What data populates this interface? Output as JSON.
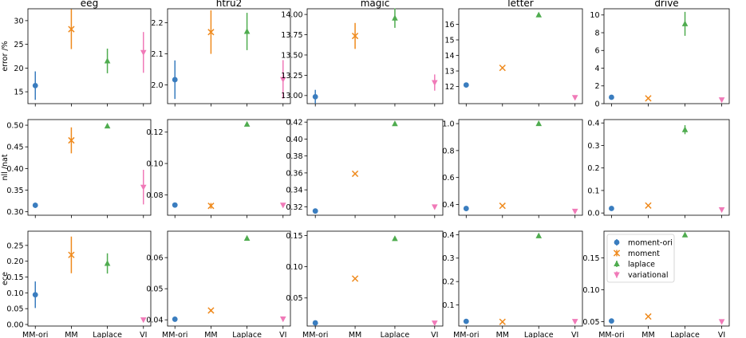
{
  "figure": {
    "row_labels": [
      "error /%",
      "nll /nat",
      "ece"
    ],
    "x_categories": [
      "MM-ori",
      "MM",
      "Laplace",
      "VI"
    ],
    "legend": [
      {
        "key": "moment-ori",
        "label": "moment-ori"
      },
      {
        "key": "moment",
        "label": "moment"
      },
      {
        "key": "laplace",
        "label": "laplace"
      },
      {
        "key": "variational",
        "label": "variational"
      }
    ]
  },
  "series_styles": {
    "moment-ori": {
      "color": "#3a7dbf",
      "marker": "circle"
    },
    "moment": {
      "color": "#ef8a1d",
      "marker": "x"
    },
    "laplace": {
      "color": "#4fac4f",
      "marker": "triangle-up"
    },
    "variational": {
      "color": "#f07ab8",
      "marker": "triangle-down"
    }
  },
  "chart_data": [
    {
      "type": "scatter",
      "title": "eeg",
      "ylabel": "error /%",
      "categories": [
        "MM-ori",
        "MM",
        "Laplace",
        "VI"
      ],
      "ylim": [
        12.5,
        32.5
      ],
      "yticks": [
        15,
        20,
        25,
        30
      ],
      "tick_labels": [
        "15",
        "20",
        "25",
        "30"
      ],
      "points": [
        {
          "series": "moment-ori",
          "x": "MM-ori",
          "y": 16.3,
          "err": 3.0
        },
        {
          "series": "moment",
          "x": "MM",
          "y": 28.2,
          "err": 4.2
        },
        {
          "series": "laplace",
          "x": "Laplace",
          "y": 21.5,
          "err": 2.6
        },
        {
          "series": "variational",
          "x": "VI",
          "y": 23.3,
          "err": 4.3
        }
      ]
    },
    {
      "type": "scatter",
      "title": "htru2",
      "ylabel": "",
      "categories": [
        "MM-ori",
        "MM",
        "Laplace",
        "VI"
      ],
      "ylim": [
        1.94,
        2.245
      ],
      "yticks": [
        2.0,
        2.1,
        2.2
      ],
      "tick_labels": [
        "2.0",
        "2.1",
        "2.2"
      ],
      "points": [
        {
          "series": "moment-ori",
          "x": "MM-ori",
          "y": 2.017,
          "err": 0.062
        },
        {
          "series": "moment",
          "x": "MM",
          "y": 2.17,
          "err": 0.07
        },
        {
          "series": "laplace",
          "x": "Laplace",
          "y": 2.172,
          "err": 0.06
        },
        {
          "series": "variational",
          "x": "VI",
          "y": 2.018,
          "err": 0.062
        }
      ]
    },
    {
      "type": "scatter",
      "title": "magic",
      "ylabel": "",
      "categories": [
        "MM-ori",
        "MM",
        "Laplace",
        "VI"
      ],
      "ylim": [
        12.9,
        14.07
      ],
      "yticks": [
        13.0,
        13.25,
        13.5,
        13.75,
        14.0
      ],
      "tick_labels": [
        "13.00",
        "13.25",
        "13.50",
        "13.75",
        "14.00"
      ],
      "points": [
        {
          "series": "moment-ori",
          "x": "MM-ori",
          "y": 12.985,
          "err": 0.085
        },
        {
          "series": "moment",
          "x": "MM",
          "y": 13.735,
          "err": 0.16
        },
        {
          "series": "laplace",
          "x": "Laplace",
          "y": 13.955,
          "err": 0.12
        },
        {
          "series": "variational",
          "x": "VI",
          "y": 13.16,
          "err": 0.1
        }
      ]
    },
    {
      "type": "scatter",
      "title": "letter",
      "ylabel": "",
      "categories": [
        "MM-ori",
        "MM",
        "Laplace",
        "VI"
      ],
      "ylim": [
        10.9,
        17.0
      ],
      "yticks": [
        12,
        13,
        14,
        15,
        16
      ],
      "tick_labels": [
        "12",
        "13",
        "14",
        "15",
        "16"
      ],
      "points": [
        {
          "series": "moment-ori",
          "x": "MM-ori",
          "y": 12.1,
          "err": 0.06
        },
        {
          "series": "moment",
          "x": "MM",
          "y": 13.2,
          "err": 0.06
        },
        {
          "series": "laplace",
          "x": "Laplace",
          "y": 16.6,
          "err": 0.06
        },
        {
          "series": "variational",
          "x": "VI",
          "y": 11.3,
          "err": 0.06
        }
      ]
    },
    {
      "type": "scatter",
      "title": "drive",
      "ylabel": "",
      "categories": [
        "MM-ori",
        "MM",
        "Laplace",
        "VI"
      ],
      "ylim": [
        0,
        10.7
      ],
      "yticks": [
        0,
        2,
        4,
        6,
        8,
        10
      ],
      "tick_labels": [
        "0",
        "2",
        "4",
        "6",
        "8",
        "10"
      ],
      "points": [
        {
          "series": "moment-ori",
          "x": "MM-ori",
          "y": 0.72,
          "err": 0.06
        },
        {
          "series": "moment",
          "x": "MM",
          "y": 0.6,
          "err": 0.06
        },
        {
          "series": "laplace",
          "x": "Laplace",
          "y": 9.0,
          "err": 1.35
        },
        {
          "series": "variational",
          "x": "VI",
          "y": 0.44,
          "err": 0.06
        }
      ]
    },
    {
      "type": "scatter",
      "title": "",
      "ylabel": "nll /nat",
      "categories": [
        "MM-ori",
        "MM",
        "Laplace",
        "VI"
      ],
      "ylim": [
        0.292,
        0.513
      ],
      "yticks": [
        0.3,
        0.35,
        0.4,
        0.45,
        0.5
      ],
      "tick_labels": [
        "0.30",
        "0.35",
        "0.40",
        "0.45",
        "0.50"
      ],
      "points": [
        {
          "series": "moment-ori",
          "x": "MM-ori",
          "y": 0.315,
          "err": 0.006
        },
        {
          "series": "moment",
          "x": "MM",
          "y": 0.465,
          "err": 0.03
        },
        {
          "series": "laplace",
          "x": "Laplace",
          "y": 0.498,
          "err": 0.003
        },
        {
          "series": "variational",
          "x": "VI",
          "y": 0.357,
          "err": 0.04
        }
      ]
    },
    {
      "type": "scatter",
      "title": "",
      "ylabel": "",
      "categories": [
        "MM-ori",
        "MM",
        "Laplace",
        "VI"
      ],
      "ylim": [
        0.067,
        0.128
      ],
      "yticks": [
        0.08,
        0.1,
        0.12
      ],
      "tick_labels": [
        "0.08",
        "0.10",
        "0.12"
      ],
      "points": [
        {
          "series": "moment-ori",
          "x": "MM-ori",
          "y": 0.0735,
          "err": 0.0005
        },
        {
          "series": "moment",
          "x": "MM",
          "y": 0.073,
          "err": 0.0018
        },
        {
          "series": "laplace",
          "x": "Laplace",
          "y": 0.125,
          "err": 0.0005
        },
        {
          "series": "variational",
          "x": "VI",
          "y": 0.0735,
          "err": 0.0008
        }
      ]
    },
    {
      "type": "scatter",
      "title": "",
      "ylabel": "",
      "categories": [
        "MM-ori",
        "MM",
        "Laplace",
        "VI"
      ],
      "ylim": [
        0.31,
        0.423
      ],
      "yticks": [
        0.32,
        0.34,
        0.36,
        0.38,
        0.4,
        0.42
      ],
      "tick_labels": [
        "0.32",
        "0.34",
        "0.36",
        "0.38",
        "0.40",
        "0.42"
      ],
      "points": [
        {
          "series": "moment-ori",
          "x": "MM-ori",
          "y": 0.315,
          "err": 0.0005
        },
        {
          "series": "moment",
          "x": "MM",
          "y": 0.359,
          "err": 0.0005
        },
        {
          "series": "laplace",
          "x": "Laplace",
          "y": 0.418,
          "err": 0.0005
        },
        {
          "series": "variational",
          "x": "VI",
          "y": 0.32,
          "err": 0.0005
        }
      ]
    },
    {
      "type": "scatter",
      "title": "",
      "ylabel": "",
      "categories": [
        "MM-ori",
        "MM",
        "Laplace",
        "VI"
      ],
      "ylim": [
        0.32,
        1.03
      ],
      "yticks": [
        0.4,
        0.6,
        0.8,
        1.0
      ],
      "tick_labels": [
        "0.4",
        "0.6",
        "0.8",
        "1.0"
      ],
      "points": [
        {
          "series": "moment-ori",
          "x": "MM-ori",
          "y": 0.37,
          "err": 0.005
        },
        {
          "series": "moment",
          "x": "MM",
          "y": 0.39,
          "err": 0.005
        },
        {
          "series": "laplace",
          "x": "Laplace",
          "y": 1.0,
          "err": 0.005
        },
        {
          "series": "variational",
          "x": "VI",
          "y": 0.35,
          "err": 0.005
        }
      ]
    },
    {
      "type": "scatter",
      "title": "",
      "ylabel": "",
      "categories": [
        "MM-ori",
        "MM",
        "Laplace",
        "VI"
      ],
      "ylim": [
        -0.01,
        0.415
      ],
      "yticks": [
        0.0,
        0.1,
        0.2,
        0.3,
        0.4
      ],
      "tick_labels": [
        "0.0",
        "0.1",
        "0.2",
        "0.3",
        "0.4"
      ],
      "points": [
        {
          "series": "moment-ori",
          "x": "MM-ori",
          "y": 0.02,
          "err": 0.002
        },
        {
          "series": "moment",
          "x": "MM",
          "y": 0.033,
          "err": 0.002
        },
        {
          "series": "laplace",
          "x": "Laplace",
          "y": 0.37,
          "err": 0.02
        },
        {
          "series": "variational",
          "x": "VI",
          "y": 0.015,
          "err": 0.002
        }
      ]
    },
    {
      "type": "scatter",
      "title": "",
      "ylabel": "ece",
      "categories": [
        "MM-ori",
        "MM",
        "Laplace",
        "VI"
      ],
      "ylim": [
        -0.005,
        0.295
      ],
      "yticks": [
        0.0,
        0.05,
        0.1,
        0.15,
        0.2,
        0.25
      ],
      "tick_labels": [
        "0.00",
        "0.05",
        "0.10",
        "0.15",
        "0.20",
        "0.25"
      ],
      "points": [
        {
          "series": "moment-ori",
          "x": "MM-ori",
          "y": 0.094,
          "err": 0.042
        },
        {
          "series": "moment",
          "x": "MM",
          "y": 0.22,
          "err": 0.058
        },
        {
          "series": "laplace",
          "x": "Laplace",
          "y": 0.193,
          "err": 0.032
        },
        {
          "series": "variational",
          "x": "VI",
          "y": 0.015,
          "err": 0.002
        }
      ]
    },
    {
      "type": "scatter",
      "title": "",
      "ylabel": "",
      "categories": [
        "MM-ori",
        "MM",
        "Laplace",
        "VI"
      ],
      "ylim": [
        0.038,
        0.0685
      ],
      "yticks": [
        0.04,
        0.05,
        0.06
      ],
      "tick_labels": [
        "0.04",
        "0.05",
        "0.06"
      ],
      "points": [
        {
          "series": "moment-ori",
          "x": "MM-ori",
          "y": 0.0402,
          "err": 0.0002
        },
        {
          "series": "moment",
          "x": "MM",
          "y": 0.043,
          "err": 0.0004
        },
        {
          "series": "laplace",
          "x": "Laplace",
          "y": 0.0662,
          "err": 0.0004
        },
        {
          "series": "variational",
          "x": "VI",
          "y": 0.0403,
          "err": 0.0002
        }
      ]
    },
    {
      "type": "scatter",
      "title": "",
      "ylabel": "",
      "categories": [
        "MM-ori",
        "MM",
        "Laplace",
        "VI"
      ],
      "ylim": [
        0.005,
        0.157
      ],
      "yticks": [
        0.05,
        0.1,
        0.15
      ],
      "tick_labels": [
        "0.05",
        "0.10",
        "0.15"
      ],
      "points": [
        {
          "series": "moment-ori",
          "x": "MM-ori",
          "y": 0.01,
          "err": 0.0005
        },
        {
          "series": "moment",
          "x": "MM",
          "y": 0.081,
          "err": 0.0005
        },
        {
          "series": "laplace",
          "x": "Laplace",
          "y": 0.145,
          "err": 0.0005
        },
        {
          "series": "variational",
          "x": "VI",
          "y": 0.01,
          "err": 0.0005
        }
      ]
    },
    {
      "type": "scatter",
      "title": "",
      "ylabel": "",
      "categories": [
        "MM-ori",
        "MM",
        "Laplace",
        "VI"
      ],
      "ylim": [
        0.01,
        0.415
      ],
      "yticks": [
        0.1,
        0.2,
        0.3,
        0.4
      ],
      "tick_labels": [
        "0.1",
        "0.2",
        "0.3",
        "0.4"
      ],
      "points": [
        {
          "series": "moment-ori",
          "x": "MM-ori",
          "y": 0.03,
          "err": 0.002
        },
        {
          "series": "moment",
          "x": "MM",
          "y": 0.028,
          "err": 0.002
        },
        {
          "series": "laplace",
          "x": "Laplace",
          "y": 0.395,
          "err": 0.003
        },
        {
          "series": "variational",
          "x": "VI",
          "y": 0.03,
          "err": 0.002
        }
      ]
    },
    {
      "type": "scatter",
      "title": "",
      "ylabel": "",
      "categories": [
        "MM-ori",
        "MM",
        "Laplace",
        "VI"
      ],
      "ylim": [
        0.043,
        0.192
      ],
      "yticks": [
        0.05,
        0.1,
        0.15
      ],
      "tick_labels": [
        "0.05",
        "0.10",
        "0.15"
      ],
      "points": [
        {
          "series": "moment-ori",
          "x": "MM-ori",
          "y": 0.051,
          "err": 0.001
        },
        {
          "series": "moment",
          "x": "MM",
          "y": 0.058,
          "err": 0.001
        },
        {
          "series": "laplace",
          "x": "Laplace",
          "y": 0.186,
          "err": 0.002
        },
        {
          "series": "variational",
          "x": "VI",
          "y": 0.05,
          "err": 0.001
        }
      ]
    }
  ]
}
